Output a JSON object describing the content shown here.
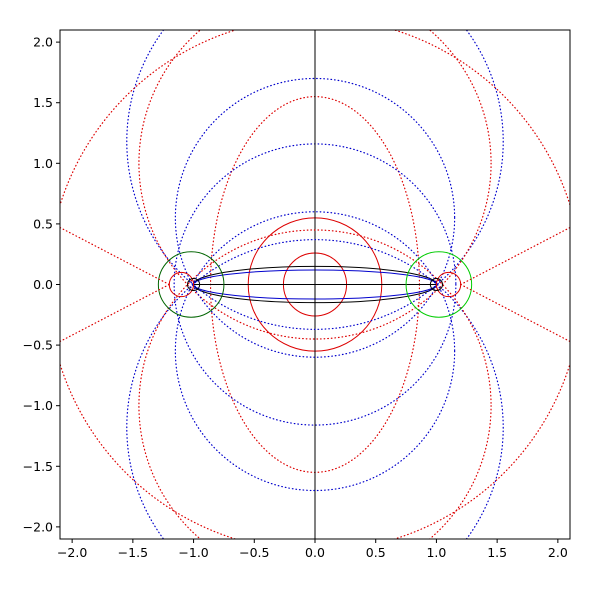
{
  "chart_data": {
    "type": "line",
    "title": "",
    "xlabel": "",
    "ylabel": "",
    "xlim": [
      -2.1,
      2.1
    ],
    "ylim": [
      -2.1,
      2.1
    ],
    "grid": false,
    "legend": "none",
    "x_ticks": [
      "−2.0",
      "−1.5",
      "−1.0",
      "−0.5",
      "0.0",
      "0.5",
      "1.0",
      "1.5",
      "2.0"
    ],
    "y_ticks": [
      "−2.0",
      "−1.5",
      "−1.0",
      "−0.5",
      "0.0",
      "0.5",
      "1.0",
      "1.5",
      "2.0"
    ],
    "tick_values": [
      -2.0,
      -1.5,
      -1.0,
      -0.5,
      0.0,
      0.5,
      1.0,
      1.5,
      2.0
    ],
    "colors": {
      "red": "#dd0000",
      "blue": "#0000cc",
      "black": "#000000",
      "dark_green": "#006400",
      "green": "#00cc00"
    },
    "series": [
      {
        "shape": "circle",
        "color": "red",
        "style": "solid",
        "cx": 0.0,
        "cy": 0.0,
        "r": 0.26
      },
      {
        "shape": "circle",
        "color": "red",
        "style": "solid",
        "cx": 0.0,
        "cy": 0.0,
        "r": 0.55
      },
      {
        "shape": "ellipse",
        "color": "red",
        "style": "dotted",
        "cx": 0.0,
        "cy": 0.0,
        "rx": 0.86,
        "ry": 1.55
      },
      {
        "shape": "circle",
        "color": "blue",
        "style": "dotted",
        "cx": 0.0,
        "cy": 0.0,
        "r": 1.16
      },
      {
        "shape": "ellipse",
        "color": "black",
        "style": "solid",
        "cx": 0.0,
        "cy": 0.0,
        "rx": 1.0,
        "ry": 0.15
      },
      {
        "shape": "ellipse",
        "color": "blue",
        "style": "solid",
        "cx": 0.0,
        "cy": 0.0,
        "rx": 1.0,
        "ry": 0.12
      },
      {
        "shape": "line",
        "color": "black",
        "style": "solid",
        "x": [
          -1.0,
          1.0
        ],
        "y": [
          0.0,
          0.0
        ]
      },
      {
        "shape": "line",
        "color": "black",
        "style": "solid",
        "x": [
          0.0,
          0.0
        ],
        "y": [
          -2.1,
          2.1
        ]
      },
      {
        "shape": "circle",
        "color": "blue",
        "style": "dotted",
        "cx": 0.0,
        "cy": 1.18,
        "r": 1.55
      },
      {
        "shape": "circle",
        "color": "blue",
        "style": "dotted",
        "cx": 0.0,
        "cy": -1.18,
        "r": 1.55
      },
      {
        "shape": "circle",
        "color": "red",
        "style": "dotted",
        "cx": 0.0,
        "cy": 1.0,
        "r": 1.45
      },
      {
        "shape": "circle",
        "color": "red",
        "style": "dotted",
        "cx": 0.0,
        "cy": -1.0,
        "r": 1.45
      },
      {
        "shape": "circle",
        "color": "blue",
        "style": "dotted",
        "cx": 0.0,
        "cy": 0.55,
        "r": 1.15
      },
      {
        "shape": "circle",
        "color": "blue",
        "style": "dotted",
        "cx": 0.0,
        "cy": -0.55,
        "r": 1.15
      },
      {
        "shape": "circle",
        "color": "red",
        "style": "dotted",
        "cx": 0.0,
        "cy": 0.0,
        "r": 2.2
      },
      {
        "shape": "circle",
        "color": "dark_green",
        "style": "solid",
        "cx": -1.02,
        "cy": 0.0,
        "r": 0.27
      },
      {
        "shape": "circle",
        "color": "green",
        "style": "solid",
        "cx": 1.02,
        "cy": 0.0,
        "r": 0.27
      },
      {
        "shape": "circle",
        "color": "red",
        "style": "solid",
        "cx": -1.1,
        "cy": 0.0,
        "r": 0.1
      },
      {
        "shape": "circle",
        "color": "red",
        "style": "solid",
        "cx": 1.1,
        "cy": 0.0,
        "r": 0.1
      },
      {
        "shape": "circle",
        "color": "black",
        "style": "solid",
        "cx": -1.0,
        "cy": 0.0,
        "r": 0.05
      },
      {
        "shape": "circle",
        "color": "black",
        "style": "solid",
        "cx": 1.0,
        "cy": 0.0,
        "r": 0.05
      },
      {
        "shape": "line",
        "color": "red",
        "style": "dotted",
        "x": [
          -2.1,
          -1.2
        ],
        "y": [
          0.47,
          0.0
        ]
      },
      {
        "shape": "line",
        "color": "red",
        "style": "dotted",
        "x": [
          -2.1,
          -1.2
        ],
        "y": [
          -0.47,
          0.0
        ]
      },
      {
        "shape": "line",
        "color": "red",
        "style": "dotted",
        "x": [
          1.2,
          2.1
        ],
        "y": [
          0.0,
          0.47
        ]
      },
      {
        "shape": "line",
        "color": "red",
        "style": "dotted",
        "x": [
          1.2,
          2.1
        ],
        "y": [
          0.0,
          -0.47
        ]
      }
    ]
  }
}
